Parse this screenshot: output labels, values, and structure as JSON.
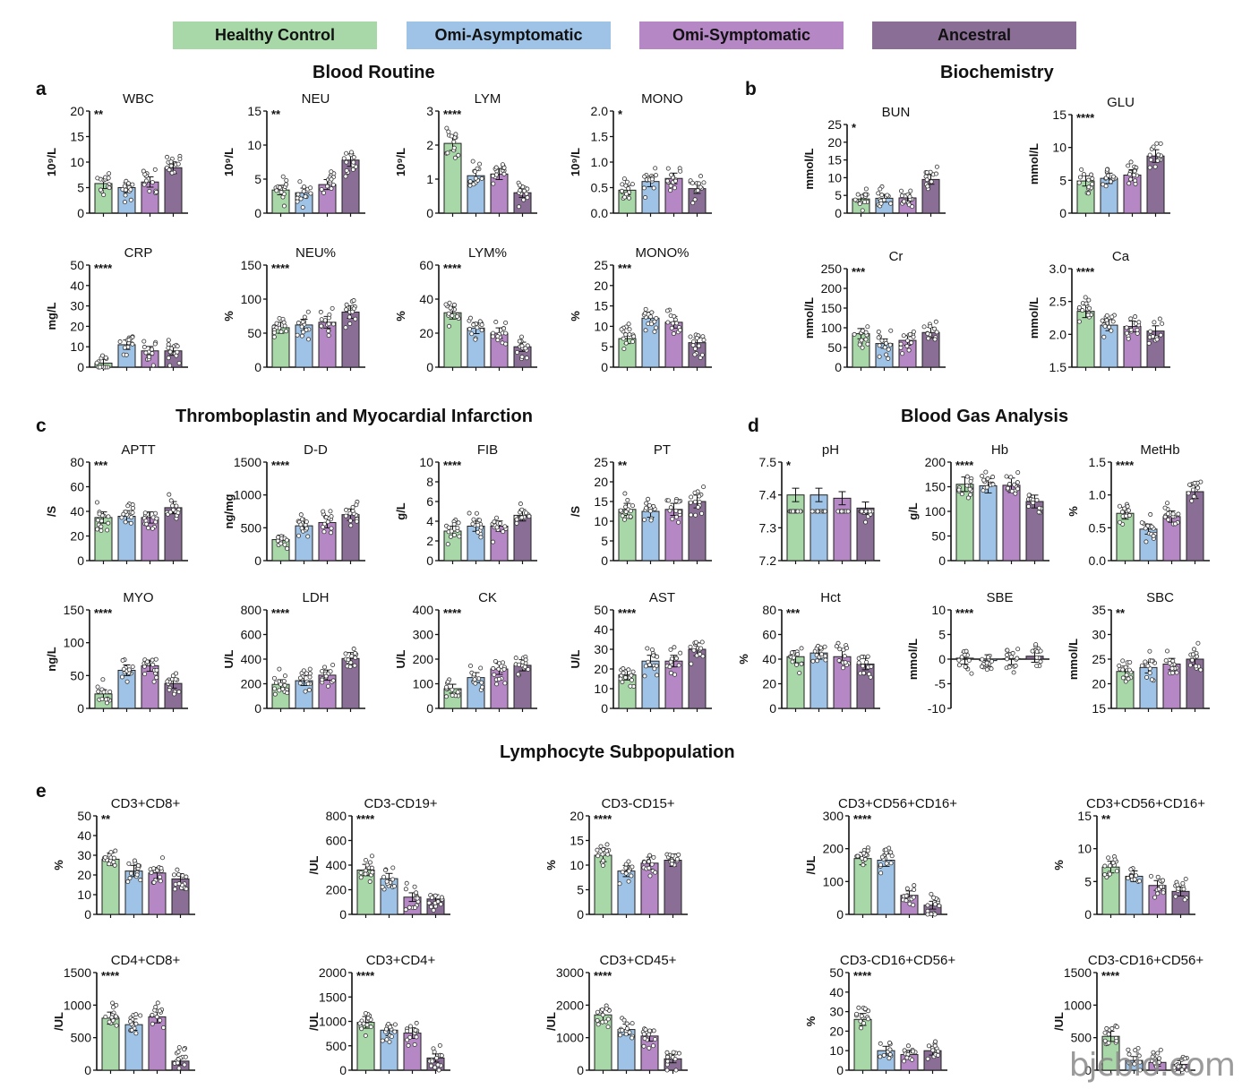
{
  "legend": [
    {
      "label": "Healthy Control",
      "color": "#a8d8a8"
    },
    {
      "label": "Omi-Asymptomatic",
      "color": "#9ec3e6"
    },
    {
      "label": "Omi-Symptomatic",
      "color": "#b587c4"
    },
    {
      "label": "Ancestral",
      "color": "#8a6e96"
    }
  ],
  "sections": {
    "blood_routine": "Blood Routine",
    "biochemistry": "Biochemistry",
    "thrombo": "Thromboplastin and Myocardial Infarction",
    "blood_gas": "Blood Gas Analysis",
    "lymph": "Lymphocyte Subpopulation"
  },
  "panel_letters": {
    "a": "a",
    "b": "b",
    "c": "c",
    "d": "d",
    "e": "e"
  },
  "watermark": "bjcbio.com",
  "chart_data": [
    {
      "type": "bar",
      "panel": "a",
      "title": "WBC",
      "ylabel": "10⁹/L",
      "sig": "**",
      "ylim": [
        0,
        20
      ],
      "ticks": [
        "0",
        "5",
        "10",
        "15",
        "20"
      ],
      "values": [
        5.8,
        5.0,
        6.1,
        8.9
      ]
    },
    {
      "type": "bar",
      "panel": "a",
      "title": "NEU",
      "ylabel": "10⁹/L",
      "sig": "**",
      "ylim": [
        0,
        15
      ],
      "ticks": [
        "0",
        "5",
        "10",
        "15"
      ],
      "values": [
        3.4,
        3.0,
        4.2,
        7.8
      ]
    },
    {
      "type": "bar",
      "panel": "a",
      "title": "LYM",
      "ylabel": "10⁹/L",
      "sig": "****",
      "ylim": [
        0,
        3
      ],
      "ticks": [
        "0",
        "1",
        "2",
        "3"
      ],
      "values": [
        2.05,
        1.1,
        1.15,
        0.6
      ]
    },
    {
      "type": "bar",
      "panel": "a",
      "title": "MONO",
      "ylabel": "10⁹/L",
      "sig": "*",
      "ylim": [
        0,
        2
      ],
      "ticks": [
        "0.0",
        "0.5",
        "1.0",
        "1.5",
        "2.0"
      ],
      "values": [
        0.45,
        0.62,
        0.68,
        0.48
      ]
    },
    {
      "type": "bar",
      "panel": "a",
      "title": "CRP",
      "ylabel": "mg/L",
      "sig": "****",
      "ylim": [
        0,
        50
      ],
      "ticks": [
        "0",
        "10",
        "20",
        "30",
        "40",
        "50"
      ],
      "values": [
        2,
        11,
        8,
        8
      ]
    },
    {
      "type": "bar",
      "panel": "a",
      "title": "NEU%",
      "ylabel": "%",
      "sig": "****",
      "ylim": [
        0,
        150
      ],
      "ticks": [
        "0",
        "50",
        "100",
        "150"
      ],
      "values": [
        58,
        62,
        66,
        81
      ]
    },
    {
      "type": "bar",
      "panel": "a",
      "title": "LYM%",
      "ylabel": "%",
      "sig": "****",
      "ylim": [
        0,
        60
      ],
      "ticks": [
        "0",
        "20",
        "40",
        "60"
      ],
      "values": [
        32,
        23,
        20,
        12
      ]
    },
    {
      "type": "bar",
      "panel": "a",
      "title": "MONO%",
      "ylabel": "%",
      "sig": "***",
      "ylim": [
        0,
        25
      ],
      "ticks": [
        "0",
        "5",
        "10",
        "15",
        "20",
        "25"
      ],
      "values": [
        7,
        12,
        11,
        6
      ]
    },
    {
      "type": "bar",
      "panel": "b",
      "title": "BUN",
      "ylabel": "mmol/L",
      "sig": "*",
      "ylim": [
        0,
        25
      ],
      "ticks": [
        "0",
        "5",
        "10",
        "15",
        "20",
        "25"
      ],
      "values": [
        4.0,
        4.2,
        4.3,
        9.5
      ]
    },
    {
      "type": "bar",
      "panel": "b",
      "title": "GLU",
      "ylabel": "mmol/L",
      "sig": "****",
      "ylim": [
        0,
        15
      ],
      "ticks": [
        "0",
        "5",
        "10",
        "15"
      ],
      "values": [
        4.9,
        5.3,
        5.8,
        8.7
      ]
    },
    {
      "type": "bar",
      "panel": "b",
      "title": "Cr",
      "ylabel": "mmol/L",
      "sig": "***",
      "ylim": [
        0,
        250
      ],
      "ticks": [
        "0",
        "50",
        "100",
        "150",
        "200",
        "250"
      ],
      "values": [
        85,
        60,
        68,
        88
      ]
    },
    {
      "type": "bar",
      "panel": "b",
      "title": "Ca",
      "ylabel": "mmol/L",
      "sig": "****",
      "ylim": [
        1.5,
        3.0
      ],
      "ticks": [
        "1.5",
        "2.0",
        "2.5",
        "3.0"
      ],
      "values": [
        2.35,
        2.14,
        2.12,
        2.05
      ]
    },
    {
      "type": "bar",
      "panel": "c",
      "title": "APTT",
      "ylabel": "/S",
      "sig": "***",
      "ylim": [
        0,
        80
      ],
      "ticks": [
        "0",
        "20",
        "40",
        "60",
        "80"
      ],
      "values": [
        35,
        36,
        35,
        43
      ]
    },
    {
      "type": "bar",
      "panel": "c",
      "title": "D-D",
      "ylabel": "ng/mg",
      "sig": "****",
      "ylim": [
        0,
        1500
      ],
      "ticks": [
        "0",
        "500",
        "1000",
        "1500"
      ],
      "values": [
        320,
        530,
        580,
        700
      ]
    },
    {
      "type": "bar",
      "panel": "c",
      "title": "FIB",
      "ylabel": "g/L",
      "sig": "****",
      "ylim": [
        0,
        10
      ],
      "ticks": [
        "0",
        "2",
        "4",
        "6",
        "8",
        "10"
      ],
      "values": [
        3.0,
        3.5,
        3.5,
        4.6
      ]
    },
    {
      "type": "bar",
      "panel": "c",
      "title": "PT",
      "ylabel": "/S",
      "sig": "**",
      "ylim": [
        0,
        25
      ],
      "ticks": [
        "0",
        "5",
        "10",
        "15",
        "20",
        "25"
      ],
      "values": [
        13,
        12.5,
        13,
        15
      ]
    },
    {
      "type": "bar",
      "panel": "c",
      "title": "MYO",
      "ylabel": "ng/L",
      "sig": "****",
      "ylim": [
        0,
        150
      ],
      "ticks": [
        "0",
        "50",
        "100",
        "150"
      ],
      "values": [
        22,
        58,
        65,
        38
      ]
    },
    {
      "type": "bar",
      "panel": "c",
      "title": "LDH",
      "ylabel": "U/L",
      "sig": "****",
      "ylim": [
        0,
        800
      ],
      "ticks": [
        "0",
        "200",
        "400",
        "600",
        "800"
      ],
      "values": [
        195,
        225,
        270,
        405
      ]
    },
    {
      "type": "bar",
      "panel": "c",
      "title": "CK",
      "ylabel": "U/L",
      "sig": "****",
      "ylim": [
        0,
        400
      ],
      "ticks": [
        "0",
        "100",
        "200",
        "300",
        "400"
      ],
      "values": [
        80,
        125,
        160,
        175
      ]
    },
    {
      "type": "bar",
      "panel": "c",
      "title": "AST",
      "ylabel": "U/L",
      "sig": "****",
      "ylim": [
        0,
        50
      ],
      "ticks": [
        "0",
        "10",
        "20",
        "30",
        "40",
        "50"
      ],
      "values": [
        17,
        24,
        24,
        30
      ]
    },
    {
      "type": "bar",
      "panel": "d",
      "title": "pH",
      "ylabel": "",
      "sig": "*",
      "ylim": [
        7.2,
        7.5
      ],
      "ticks": [
        "7.2",
        "7.3",
        "7.4",
        "7.5"
      ],
      "values": [
        7.4,
        7.4,
        7.39,
        7.36
      ]
    },
    {
      "type": "bar",
      "panel": "d",
      "title": "Hb",
      "ylabel": "g/L",
      "sig": "****",
      "ylim": [
        0,
        200
      ],
      "ticks": [
        "0",
        "50",
        "100",
        "150",
        "200"
      ],
      "values": [
        155,
        152,
        153,
        120
      ]
    },
    {
      "type": "bar",
      "panel": "d",
      "title": "MetHb",
      "ylabel": "%",
      "sig": "****",
      "ylim": [
        0,
        1.5
      ],
      "ticks": [
        "0.0",
        "0.5",
        "1.0",
        "1.5"
      ],
      "values": [
        0.72,
        0.48,
        0.67,
        1.05
      ]
    },
    {
      "type": "bar",
      "panel": "d",
      "title": "Hct",
      "ylabel": "%",
      "sig": "***",
      "ylim": [
        0,
        80
      ],
      "ticks": [
        "0",
        "20",
        "40",
        "60",
        "80"
      ],
      "values": [
        42,
        45,
        42,
        36
      ]
    },
    {
      "type": "bar",
      "panel": "d",
      "title": "SBE",
      "ylabel": "mmol/L",
      "sig": "****",
      "ylim": [
        -10,
        10
      ],
      "ticks": [
        "-10",
        "-5",
        "0",
        "5",
        "10"
      ],
      "values": [
        0.2,
        -0.3,
        0.1,
        0.6
      ]
    },
    {
      "type": "bar",
      "panel": "d",
      "title": "SBC",
      "ylabel": "mmol/L",
      "sig": "**",
      "ylim": [
        15,
        35
      ],
      "ticks": [
        "15",
        "20",
        "25",
        "30",
        "35"
      ],
      "values": [
        22.5,
        23.3,
        24,
        25
      ]
    },
    {
      "type": "bar",
      "panel": "e",
      "title": "CD3+CD8+",
      "ylabel": "%",
      "sig": "**",
      "ylim": [
        0,
        50
      ],
      "ticks": [
        "0",
        "10",
        "20",
        "30",
        "40",
        "50"
      ],
      "values": [
        28,
        22,
        21,
        18
      ]
    },
    {
      "type": "bar",
      "panel": "e",
      "title": "CD3-CD19+",
      "ylabel": "/UL",
      "sig": "****",
      "ylim": [
        0,
        800
      ],
      "ticks": [
        "0",
        "200",
        "400",
        "600",
        "800"
      ],
      "values": [
        360,
        290,
        140,
        125
      ]
    },
    {
      "type": "bar",
      "panel": "e",
      "title": "CD3-CD15+",
      "ylabel": "%",
      "sig": "****",
      "ylim": [
        0,
        20
      ],
      "ticks": [
        "0",
        "5",
        "10",
        "15",
        "20"
      ],
      "values": [
        12,
        8.8,
        10.4,
        11
      ]
    },
    {
      "type": "bar",
      "panel": "e",
      "title": "CD3+CD56+CD16+",
      "ylabel": "/UL",
      "sig": "****",
      "ylim": [
        0,
        300
      ],
      "ticks": [
        "0",
        "100",
        "200",
        "300"
      ],
      "values": [
        170,
        165,
        58,
        28
      ]
    },
    {
      "type": "bar",
      "panel": "e",
      "title": "CD3+CD56+CD16+",
      "ylabel": "%",
      "sig": "**",
      "ylim": [
        0,
        15
      ],
      "ticks": [
        "0",
        "5",
        "10",
        "15"
      ],
      "values": [
        7.2,
        5.8,
        4.4,
        3.5
      ]
    },
    {
      "type": "bar",
      "panel": "e",
      "title": "CD4+CD8+",
      "ylabel": "/UL",
      "sig": "****",
      "ylim": [
        0,
        1500
      ],
      "ticks": [
        "0",
        "500",
        "1000",
        "1500"
      ],
      "values": [
        800,
        700,
        820,
        140
      ]
    },
    {
      "type": "bar",
      "panel": "e",
      "title": "CD3+CD4+",
      "ylabel": "/UL",
      "sig": "****",
      "ylim": [
        0,
        2000
      ],
      "ticks": [
        "0",
        "500",
        "1000",
        "1500",
        "2000"
      ],
      "values": [
        980,
        820,
        760,
        250
      ]
    },
    {
      "type": "bar",
      "panel": "e",
      "title": "CD3+CD45+",
      "ylabel": "/UL",
      "sig": "****",
      "ylim": [
        0,
        3000
      ],
      "ticks": [
        "0",
        "1000",
        "2000",
        "3000"
      ],
      "values": [
        1700,
        1250,
        1050,
        350
      ]
    },
    {
      "type": "bar",
      "panel": "e",
      "title": "CD3-CD16+CD56+",
      "ylabel": "%",
      "sig": "****",
      "ylim": [
        0,
        50
      ],
      "ticks": [
        "0",
        "10",
        "20",
        "30",
        "40",
        "50"
      ],
      "values": [
        26,
        10,
        8,
        10
      ]
    },
    {
      "type": "bar",
      "panel": "e",
      "title": "CD3-CD16+CD56+",
      "ylabel": "/UL",
      "sig": "****",
      "ylim": [
        0,
        1500
      ],
      "ticks": [
        "0",
        "500",
        "1000",
        "1500"
      ],
      "values": [
        520,
        150,
        120,
        90
      ]
    }
  ]
}
